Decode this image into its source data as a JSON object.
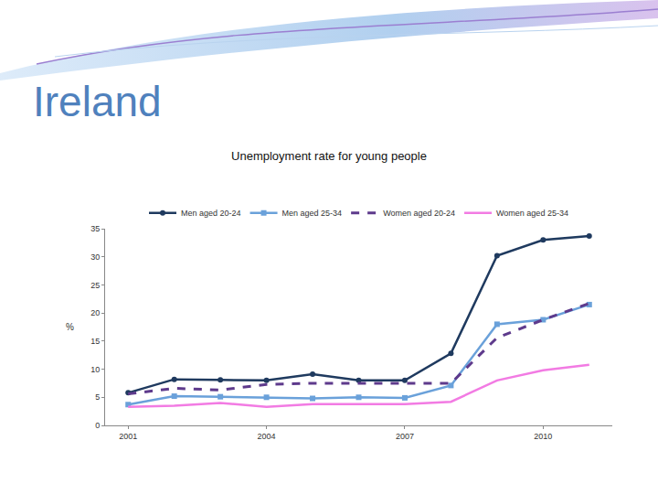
{
  "heading": "Ireland",
  "chart_data": {
    "type": "line",
    "title": "Unemployment rate for young people",
    "ylabel": "%",
    "categories": [
      "2001",
      null,
      null,
      "2004",
      null,
      null,
      "2007",
      null,
      null,
      "2010",
      null
    ],
    "series": [
      {
        "name": "Men aged 20-24",
        "color": "#1F3A5F",
        "marker": "circle",
        "line_style": "solid",
        "values": [
          5.8,
          8.2,
          8.1,
          8.0,
          9.1,
          8.0,
          8.0,
          12.8,
          30.2,
          33.0,
          33.7
        ]
      },
      {
        "name": "Men aged 25-34",
        "color": "#6AA1DA",
        "marker": "square",
        "line_style": "solid",
        "values": [
          3.7,
          5.2,
          5.1,
          5.0,
          4.8,
          5.0,
          4.9,
          7.1,
          18.0,
          18.8,
          21.5
        ]
      },
      {
        "name": "Women aged 20-24",
        "color": "#5E3A8C",
        "line_style": "dashed",
        "values": [
          5.6,
          6.6,
          6.3,
          7.3,
          7.5,
          7.5,
          7.4,
          7.5,
          15.6,
          18.8,
          21.7
        ]
      },
      {
        "name": "Women aged 25-34",
        "color": "#F27BE3",
        "line_style": "solid",
        "values": [
          3.3,
          3.5,
          4.0,
          3.3,
          3.8,
          3.8,
          3.8,
          4.2,
          8.0,
          9.8,
          10.8
        ]
      }
    ],
    "ylim": [
      0,
      35
    ],
    "yticks": [
      0,
      5,
      10,
      15,
      20,
      25,
      30,
      35
    ],
    "grid": false,
    "legend": "top"
  }
}
